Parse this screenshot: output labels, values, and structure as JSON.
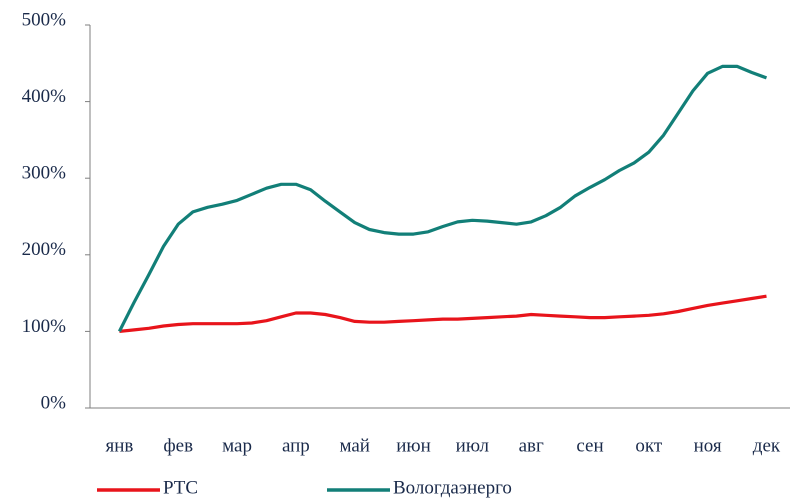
{
  "chart_data": {
    "type": "line",
    "x": [
      0,
      0.25,
      0.5,
      0.75,
      1,
      1.25,
      1.5,
      1.75,
      2,
      2.25,
      2.5,
      2.75,
      3,
      3.25,
      3.5,
      3.75,
      4,
      4.25,
      4.5,
      4.75,
      5,
      5.25,
      5.5,
      5.75,
      6,
      6.25,
      6.5,
      6.75,
      7,
      7.25,
      7.5,
      7.75,
      8,
      8.25,
      8.5,
      8.75,
      9,
      9.25,
      9.5,
      9.75,
      10,
      10.25,
      10.5,
      10.75,
      11
    ],
    "series": [
      {
        "name": "РТС",
        "color": "#e8141b",
        "values": [
          100,
          102,
          104,
          107,
          109,
          110,
          110,
          110,
          110,
          111,
          114,
          119,
          124,
          124,
          122,
          118,
          113,
          112,
          112,
          113,
          114,
          115,
          116,
          116,
          117,
          118,
          119,
          120,
          122,
          121,
          120,
          119,
          118,
          118,
          119,
          120,
          121,
          123,
          126,
          130,
          134,
          137,
          140,
          143,
          146
        ]
      },
      {
        "name": "Вологдаэнерго",
        "color": "#127f78",
        "values": [
          100,
          138,
          174,
          211,
          240,
          256,
          262,
          266,
          271,
          279,
          287,
          292,
          292,
          285,
          270,
          256,
          242,
          233,
          229,
          227,
          227,
          230,
          237,
          243,
          245,
          244,
          242,
          240,
          243,
          251,
          262,
          277,
          288,
          298,
          310,
          320,
          334,
          356,
          385,
          414,
          437,
          446,
          446,
          438,
          431
        ]
      }
    ],
    "xlim": [
      -0.5,
      11.4
    ],
    "xticks": [
      {
        "value": 0,
        "label": "янв"
      },
      {
        "value": 1,
        "label": "фев"
      },
      {
        "value": 2,
        "label": "мар"
      },
      {
        "value": 3,
        "label": "апр"
      },
      {
        "value": 4,
        "label": "май"
      },
      {
        "value": 5,
        "label": "июн"
      },
      {
        "value": 6,
        "label": "июл"
      },
      {
        "value": 7,
        "label": "авг"
      },
      {
        "value": 8,
        "label": "сен"
      },
      {
        "value": 9,
        "label": "окт"
      },
      {
        "value": 10,
        "label": "ноя"
      },
      {
        "value": 11,
        "label": "дек"
      }
    ],
    "ylim": [
      0,
      500
    ],
    "yticks": [
      {
        "value": 0,
        "label": "0%"
      },
      {
        "value": 100,
        "label": "100%"
      },
      {
        "value": 200,
        "label": "200%"
      },
      {
        "value": 300,
        "label": "300%"
      },
      {
        "value": 400,
        "label": "400%"
      },
      {
        "value": 500,
        "label": "500%"
      }
    ],
    "grid": false,
    "legend": "bottom"
  }
}
